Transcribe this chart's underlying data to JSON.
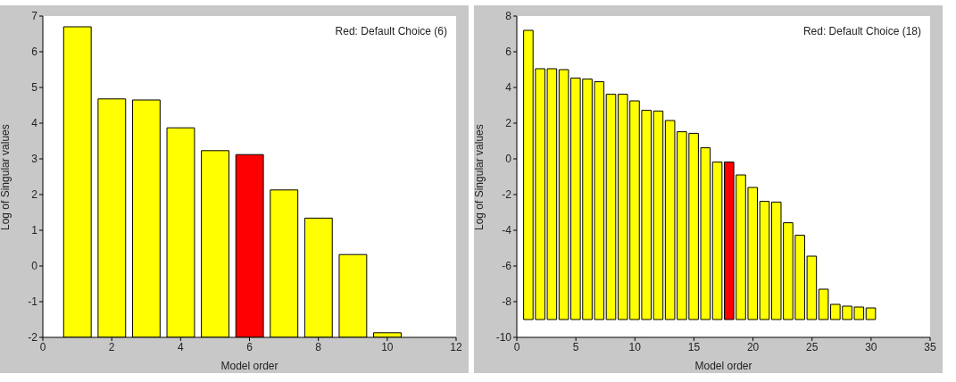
{
  "chart_data": [
    {
      "type": "bar",
      "xlabel": "Model order",
      "ylabel": "Log of Singular values",
      "annotations": [
        "Red: Default Choice (6)"
      ],
      "x": [
        1,
        2,
        3,
        4,
        5,
        6,
        7,
        8,
        9,
        10
      ],
      "base": [
        -2,
        -2,
        -2,
        -2,
        -2,
        -2,
        -2,
        -2,
        -2,
        -2
      ],
      "values": [
        8.7,
        6.68,
        6.65,
        5.87,
        5.23,
        5.12,
        4.13,
        3.34,
        2.32,
        0.13
      ],
      "colors": [
        "#ffff00",
        "#ffff00",
        "#ffff00",
        "#ffff00",
        "#ffff00",
        "#ff0000",
        "#ffff00",
        "#ffff00",
        "#ffff00",
        "#ffff00"
      ],
      "xlim": [
        0,
        12
      ],
      "xticks": [
        0,
        2,
        4,
        6,
        8,
        10,
        12
      ],
      "ylim": [
        -2,
        7
      ],
      "yticks": [
        -2,
        -1,
        0,
        1,
        2,
        3,
        4,
        5,
        6,
        7
      ]
    },
    {
      "type": "bar",
      "xlabel": "Model order",
      "ylabel": "Log of Singular values",
      "annotations": [
        "Red: Default Choice (18)"
      ],
      "x": [
        1,
        2,
        3,
        4,
        5,
        6,
        7,
        8,
        9,
        10,
        11,
        12,
        13,
        14,
        15,
        16,
        17,
        18,
        19,
        20,
        21,
        22,
        23,
        24,
        25,
        26,
        27,
        28,
        29,
        30
      ],
      "base": [
        -9,
        -9,
        -9,
        -9,
        -9,
        -9,
        -9,
        -9,
        -9,
        -9,
        -9,
        -9,
        -9,
        -9,
        -9,
        -9,
        -9,
        -9,
        -9,
        -9,
        -9,
        -9,
        -9,
        -9,
        -9,
        -9,
        -9,
        -9,
        -9,
        -9
      ],
      "values": [
        16.2,
        14.05,
        14.05,
        14.0,
        13.53,
        13.47,
        13.32,
        12.62,
        12.62,
        12.25,
        11.72,
        11.68,
        11.15,
        10.52,
        10.43,
        9.62,
        8.82,
        8.82,
        8.1,
        7.4,
        6.62,
        6.58,
        5.42,
        4.72,
        3.55,
        1.7,
        0.85,
        0.75,
        0.7,
        0.65
      ],
      "colors": [
        "#ffff00",
        "#ffff00",
        "#ffff00",
        "#ffff00",
        "#ffff00",
        "#ffff00",
        "#ffff00",
        "#ffff00",
        "#ffff00",
        "#ffff00",
        "#ffff00",
        "#ffff00",
        "#ffff00",
        "#ffff00",
        "#ffff00",
        "#ffff00",
        "#ffff00",
        "#ff0000",
        "#ffff00",
        "#ffff00",
        "#ffff00",
        "#ffff00",
        "#ffff00",
        "#ffff00",
        "#ffff00",
        "#ffff00",
        "#ffff00",
        "#ffff00",
        "#ffff00",
        "#ffff00"
      ],
      "xlim": [
        0,
        35
      ],
      "xticks": [
        0,
        5,
        10,
        15,
        20,
        25,
        30,
        35
      ],
      "ylim": [
        -10,
        8
      ],
      "yticks": [
        -10,
        -8,
        -6,
        -4,
        -2,
        0,
        2,
        4,
        6,
        8
      ]
    }
  ]
}
